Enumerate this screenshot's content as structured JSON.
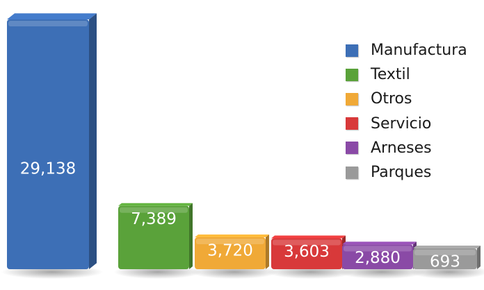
{
  "chart_data": {
    "type": "bar",
    "categories": [
      "Manufactura",
      "Textil",
      "Otros",
      "Servicio",
      "Arneses",
      "Parques"
    ],
    "values": [
      29138,
      7389,
      3720,
      3603,
      2880,
      693
    ],
    "data_labels": [
      "29,138",
      "7,389",
      "3,720",
      "3,603",
      "2,880",
      "693"
    ],
    "colors": [
      "#3d6fb6",
      "#5aa23a",
      "#f0a937",
      "#d8393a",
      "#8a4aa6",
      "#9a9a9a"
    ],
    "legend_position": "right",
    "grid": false
  },
  "legend": {
    "items": [
      {
        "label": "Manufactura",
        "color": "#3d6fb6"
      },
      {
        "label": "Textil",
        "color": "#5aa23a"
      },
      {
        "label": "Otros",
        "color": "#f0a937"
      },
      {
        "label": "Servicio",
        "color": "#d8393a"
      },
      {
        "label": "Arneses",
        "color": "#8a4aa6"
      },
      {
        "label": "Parques",
        "color": "#9a9a9a"
      }
    ]
  }
}
